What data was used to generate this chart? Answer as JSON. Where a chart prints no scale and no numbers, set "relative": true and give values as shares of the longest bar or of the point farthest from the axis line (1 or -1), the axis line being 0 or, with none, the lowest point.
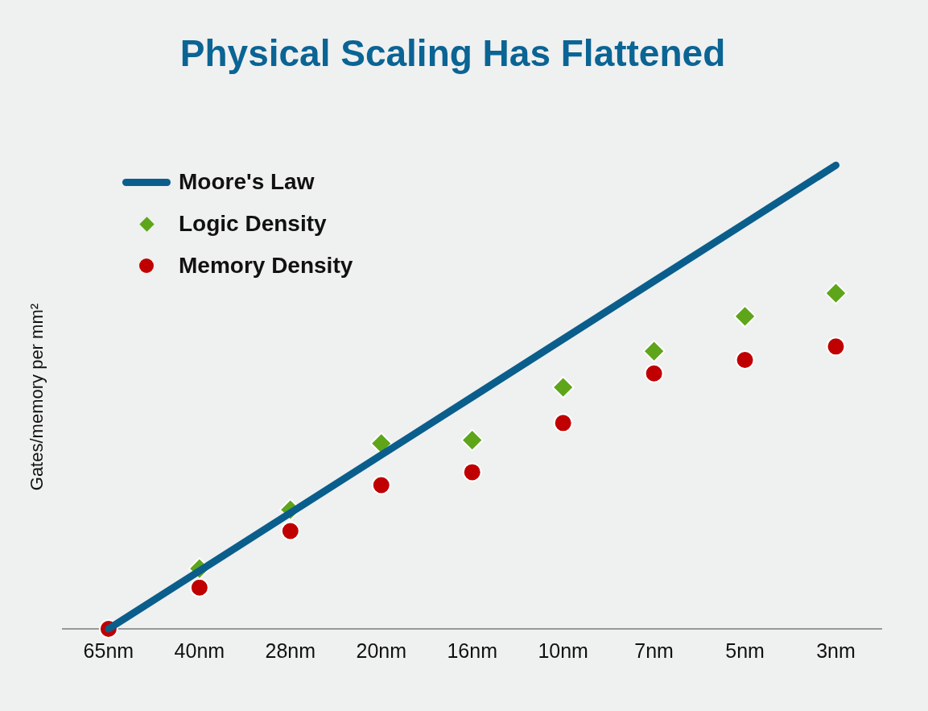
{
  "chart_data": {
    "type": "scatter",
    "title": "Physical Scaling Has Flattened",
    "ylabel": "Gates/memory per mm²",
    "categories": [
      "65nm",
      "40nm",
      "28nm",
      "20nm",
      "16nm",
      "10nm",
      "7nm",
      "5nm",
      "3nm"
    ],
    "relative": true,
    "grid": false,
    "legend": "top left",
    "series": [
      {
        "name": "Moore's Law",
        "type": "line",
        "marker": "none",
        "color": "#0a5e8c",
        "values": [
          0,
          0.125,
          0.25,
          0.375,
          0.5,
          0.625,
          0.75,
          0.875,
          1
        ]
      },
      {
        "name": "Logic Density",
        "marker": "diamond",
        "color": "#5ea51a",
        "values": [
          null,
          0.13,
          0.257,
          0.4,
          0.407,
          0.521,
          0.599,
          0.674,
          0.724
        ]
      },
      {
        "name": "Memory Density",
        "marker": "circle",
        "color": "#c00000",
        "values": [
          0,
          0.089,
          0.211,
          0.31,
          0.338,
          0.444,
          0.551,
          0.58,
          0.609
        ]
      }
    ]
  }
}
